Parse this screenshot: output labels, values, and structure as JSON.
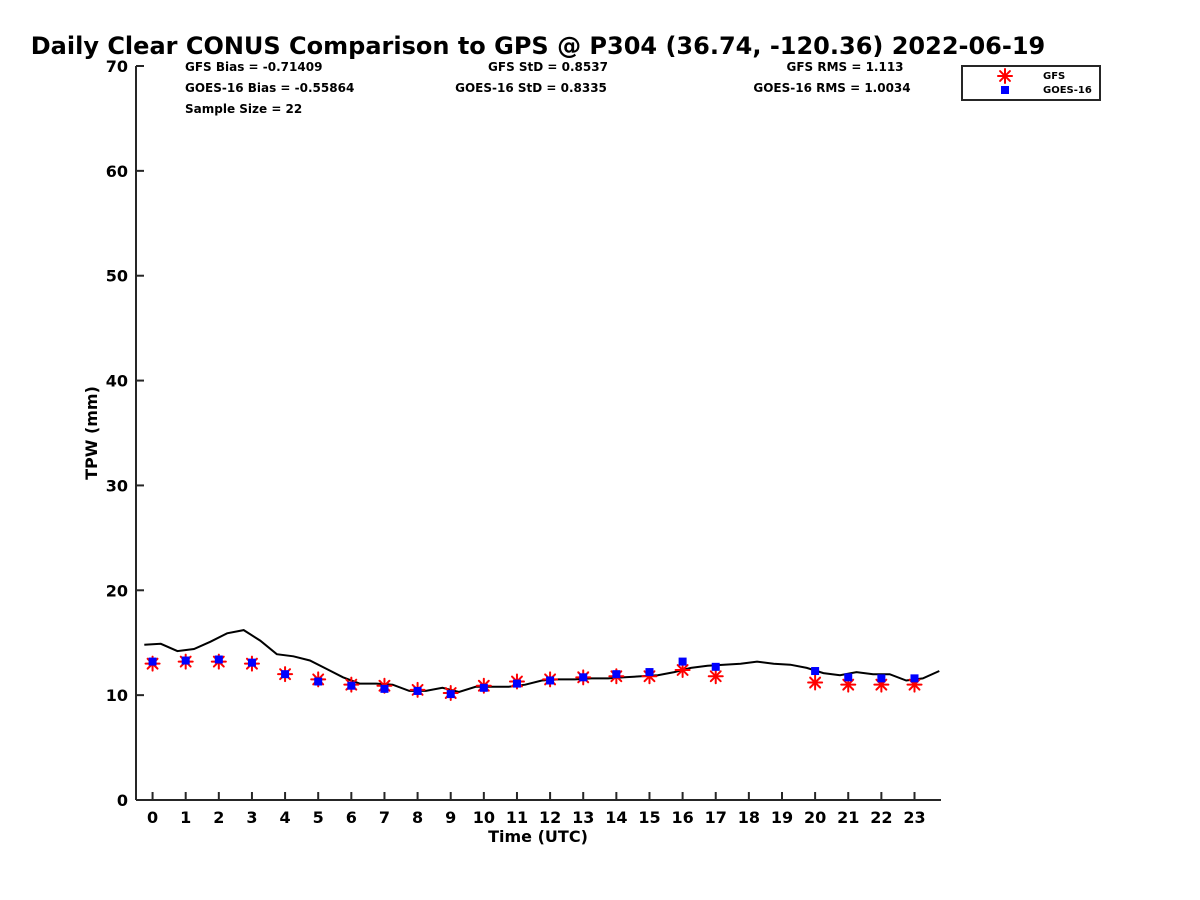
{
  "chart_data": {
    "type": "scatter",
    "title": "Daily Clear CONUS Comparison to GPS @ P304 (36.74, -120.36) 2022-06-19",
    "xlabel": "Time (UTC)",
    "ylabel": "TPW (mm)",
    "xlim": [
      -0.5,
      23.8
    ],
    "ylim": [
      0,
      70
    ],
    "xticks": [
      0,
      1,
      2,
      3,
      4,
      5,
      6,
      7,
      8,
      9,
      10,
      11,
      12,
      13,
      14,
      15,
      16,
      17,
      18,
      19,
      20,
      21,
      22,
      23
    ],
    "yticks": [
      0,
      10,
      20,
      30,
      40,
      50,
      60,
      70
    ],
    "grid": false,
    "legend_position": "top-right",
    "stats": [
      [
        "GFS Bias = -0.71409",
        "GFS StD = 0.8537",
        "GFS RMS = 1.113"
      ],
      [
        "GOES-16 Bias = -0.55864",
        "GOES-16 StD = 0.8335",
        "GOES-16 RMS = 1.0034"
      ],
      [
        "Sample Size = 22",
        "",
        ""
      ]
    ],
    "series": [
      {
        "name": "GFS",
        "marker": "asterisk",
        "color": "#ff0000",
        "x": [
          0,
          1,
          2,
          3,
          4,
          5,
          6,
          7,
          8,
          9,
          10,
          11,
          12,
          13,
          14,
          15,
          16,
          17,
          20,
          21,
          22,
          23
        ],
        "y": [
          13.0,
          13.2,
          13.2,
          13.0,
          12.0,
          11.5,
          11.0,
          10.9,
          10.5,
          10.2,
          10.9,
          11.3,
          11.5,
          11.7,
          11.8,
          11.8,
          12.4,
          11.8,
          11.2,
          11.0,
          11.0,
          11.0
        ]
      },
      {
        "name": "GOES-16",
        "marker": "square",
        "color": "#0000ff",
        "x": [
          0,
          1,
          2,
          3,
          4,
          5,
          6,
          7,
          8,
          9,
          10,
          11,
          12,
          13,
          14,
          15,
          16,
          17,
          20,
          21,
          22,
          23
        ],
        "y": [
          13.2,
          13.3,
          13.4,
          13.1,
          12.0,
          11.3,
          10.9,
          10.6,
          10.4,
          10.1,
          10.7,
          11.1,
          11.4,
          11.7,
          12.0,
          12.2,
          13.2,
          12.7,
          12.3,
          11.7,
          11.6,
          11.6
        ]
      },
      {
        "name": "GPS",
        "marker": "line",
        "color": "#000000",
        "x": [
          -0.25,
          0.25,
          0.75,
          1.25,
          1.75,
          2.25,
          2.75,
          3.25,
          3.75,
          4.25,
          4.75,
          5.25,
          5.75,
          6.25,
          6.75,
          7.25,
          7.75,
          8.25,
          8.75,
          9.25,
          9.75,
          10.25,
          10.75,
          11.25,
          11.75,
          12.25,
          12.75,
          13.25,
          13.75,
          14.25,
          14.75,
          15.25,
          15.75,
          16.25,
          16.75,
          17.25,
          17.75,
          18.25,
          18.75,
          19.25,
          19.75,
          20.25,
          20.75,
          21.25,
          21.75,
          22.25,
          22.75,
          23.25,
          23.75
        ],
        "y": [
          14.8,
          14.9,
          14.2,
          14.4,
          15.1,
          15.9,
          16.2,
          15.2,
          13.9,
          13.7,
          13.3,
          12.5,
          11.7,
          11.1,
          11.1,
          11.0,
          10.4,
          10.4,
          10.7,
          10.3,
          10.8,
          10.8,
          10.8,
          11.0,
          11.4,
          11.5,
          11.5,
          11.6,
          11.6,
          11.7,
          11.8,
          11.9,
          12.2,
          12.6,
          12.8,
          12.9,
          13.0,
          13.2,
          13.0,
          12.9,
          12.6,
          12.1,
          11.9,
          12.2,
          12.0,
          12.0,
          11.4,
          11.6,
          12.3
        ]
      }
    ]
  }
}
